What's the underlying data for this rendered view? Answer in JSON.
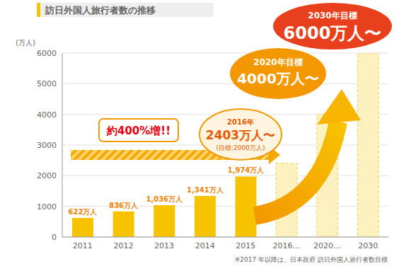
{
  "chart_data": {
    "type": "bar",
    "title": "訪日外国人旅行者数の推移",
    "y_label": "(万人)",
    "categories": [
      "2011",
      "2012",
      "2013",
      "2014",
      "2015",
      "2016…",
      "2020…",
      "2030"
    ],
    "series": [
      {
        "color": "#f7c200",
        "values": [
          622,
          836,
          1036,
          1341,
          1974,
          null,
          null,
          null
        ],
        "data_labels": true,
        "value_labels": [
          "622万人",
          "836万人",
          "1,036万人",
          "1,341万人",
          "1,974万人",
          null,
          null,
          null
        ]
      },
      {
        "color": "#fdf1c0",
        "line_style": "dashed",
        "values": [
          null,
          null,
          null,
          null,
          null,
          2403,
          4000,
          6000
        ]
      }
    ],
    "ylim": [
      0,
      6000
    ],
    "yticks": [
      0,
      1000,
      2000,
      3000,
      4000,
      5000,
      6000
    ],
    "grid": true,
    "annotations": [
      {
        "lines": [
          "約400%増!!"
        ]
      },
      {
        "lines": [
          "2016年",
          "2403万人〜",
          "(目標:2000万人)"
        ]
      },
      {
        "lines": [
          "2020年目標",
          "4000万人〜"
        ]
      },
      {
        "lines": [
          "2030年目標",
          "6000万人〜"
        ]
      }
    ],
    "note": "※2017 年以降は、日本政府 訪日外国人旅行者数目標"
  }
}
